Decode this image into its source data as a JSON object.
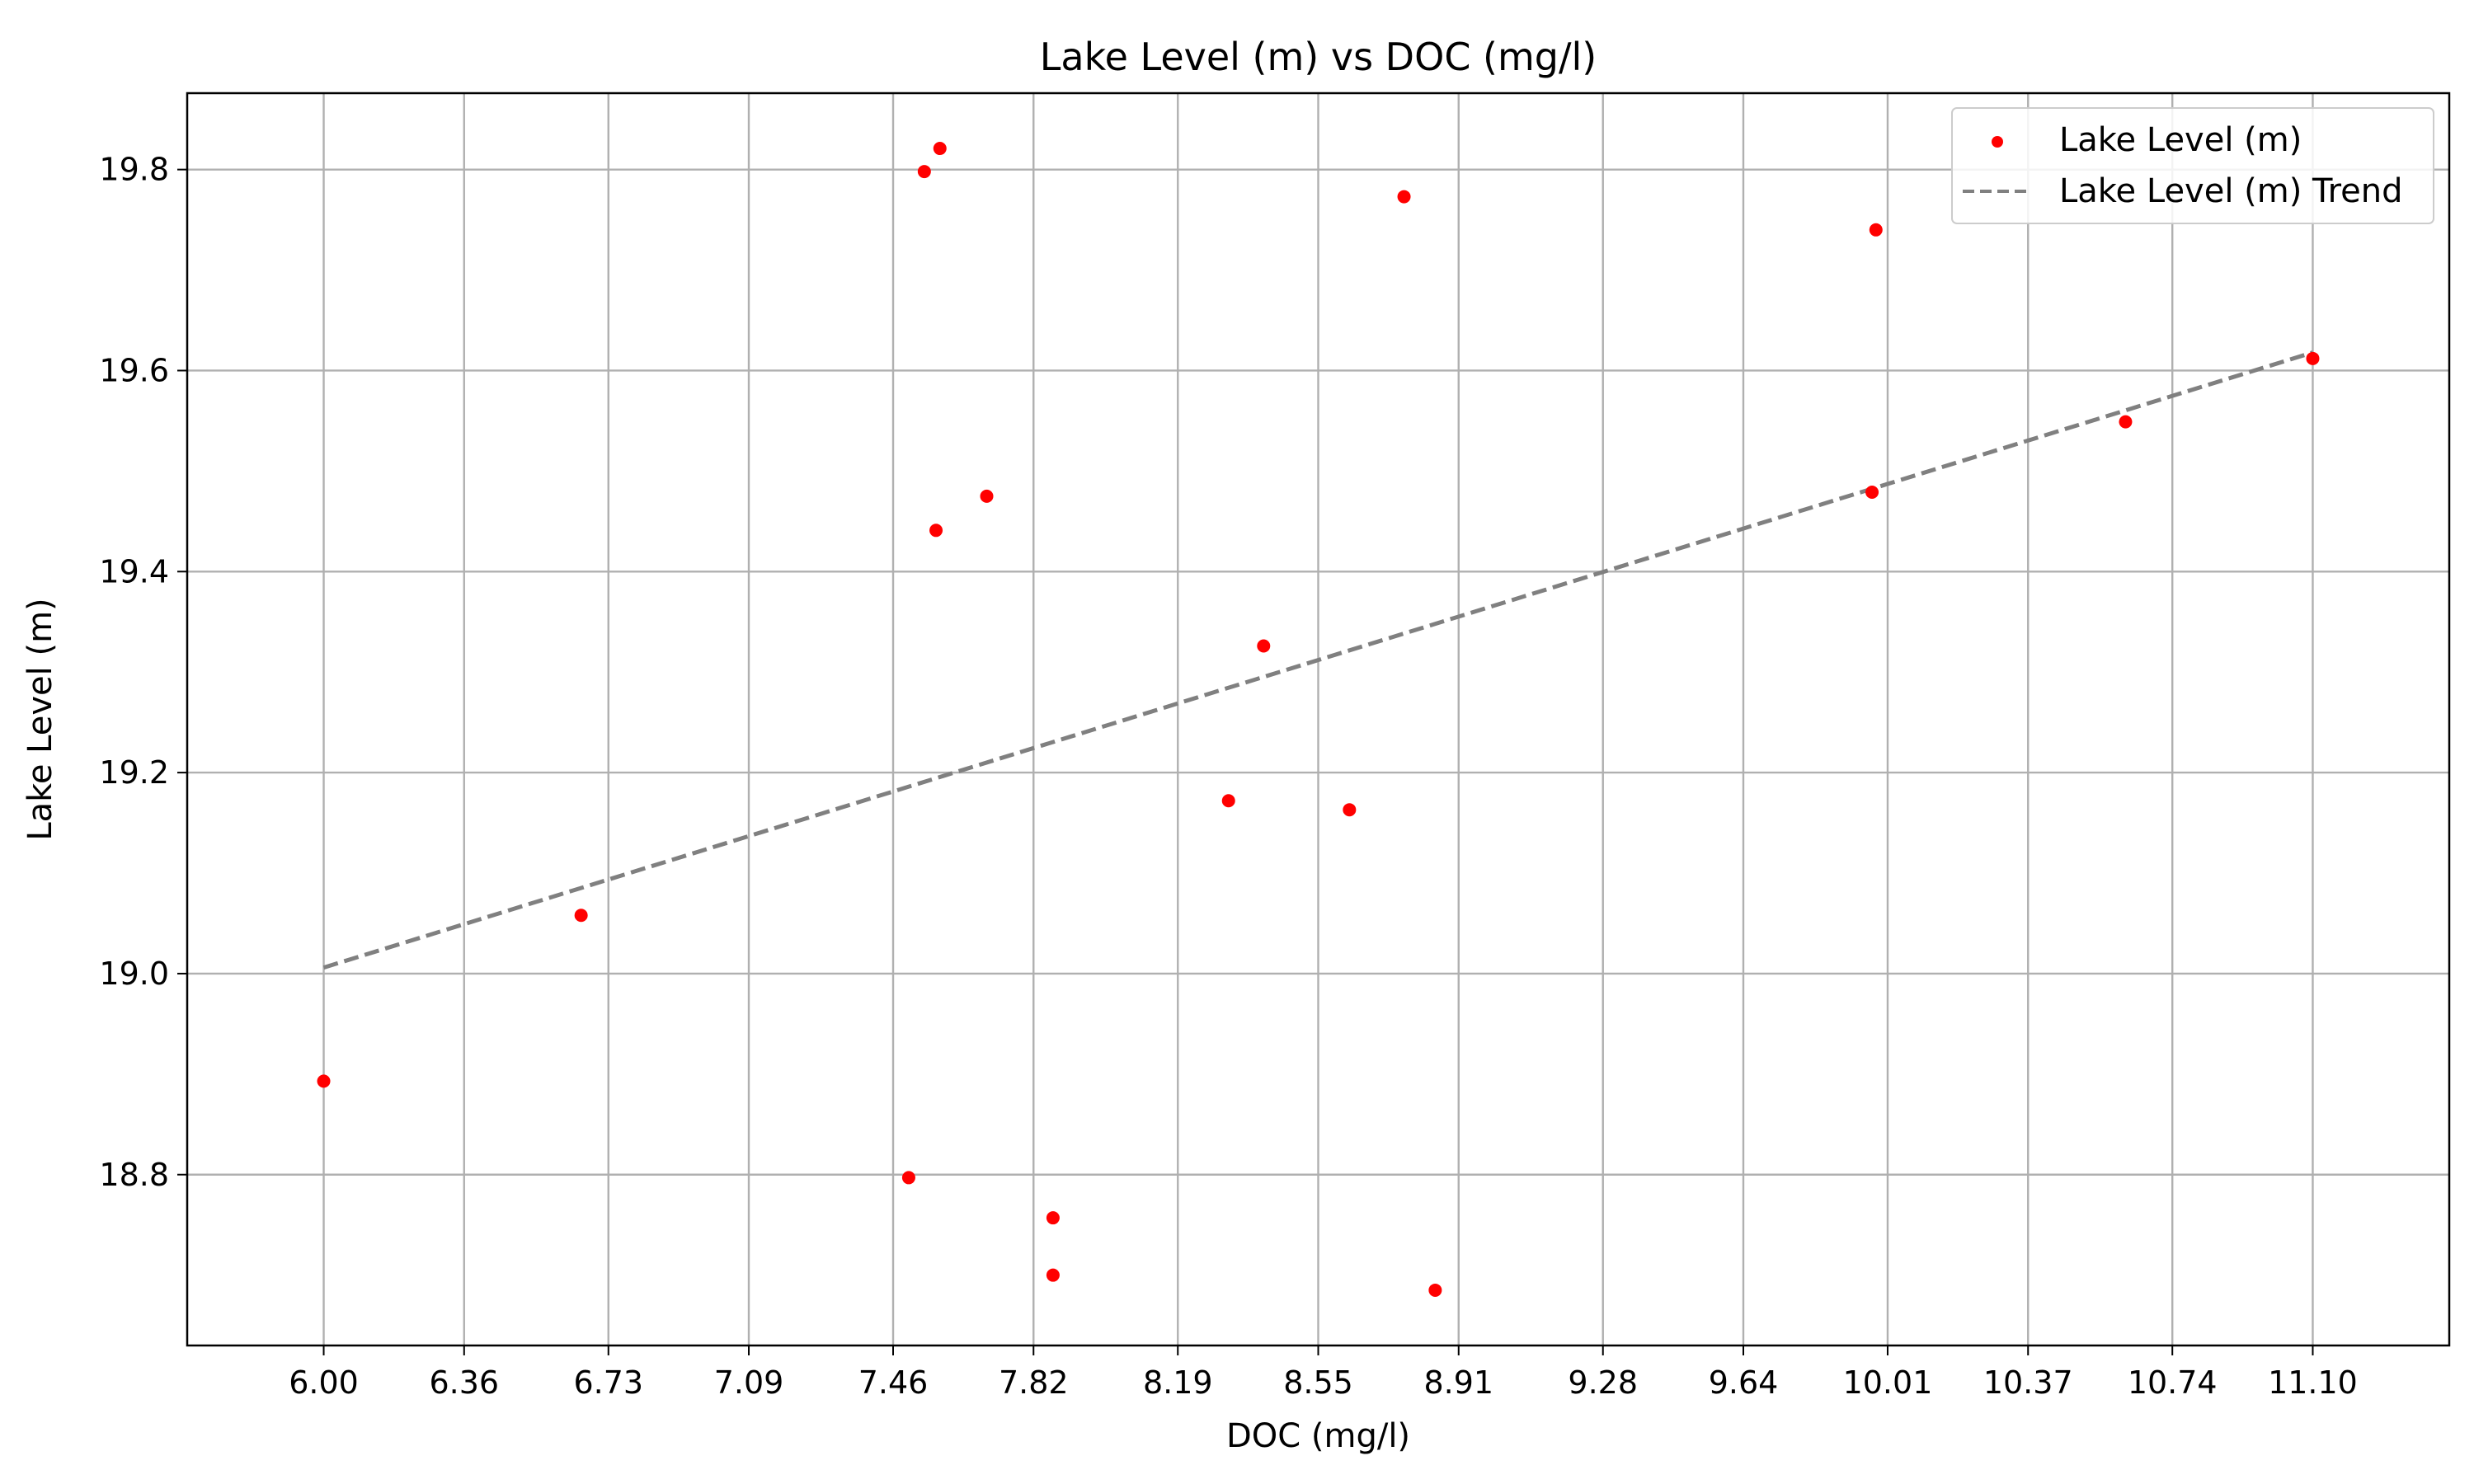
{
  "chart_data": {
    "type": "scatter",
    "title": "Lake Level (m) vs DOC (mg/l)",
    "xlabel": "DOC (mg/l)",
    "ylabel": "Lake Level (m)",
    "xlim": [
      5.65,
      11.45
    ],
    "ylim": [
      18.63,
      19.876
    ],
    "x_ticks": [
      6.0,
      6.36,
      6.73,
      7.09,
      7.46,
      7.82,
      8.19,
      8.55,
      8.91,
      9.28,
      9.64,
      10.01,
      10.37,
      10.74,
      11.1
    ],
    "x_tick_labels": [
      "6.00",
      "6.36",
      "6.73",
      "7.09",
      "7.46",
      "7.82",
      "8.19",
      "8.55",
      "8.91",
      "9.28",
      "9.64",
      "10.01",
      "10.37",
      "10.74",
      "11.10"
    ],
    "y_ticks": [
      18.8,
      19.0,
      19.2,
      19.4,
      19.6,
      19.8
    ],
    "y_tick_labels": [
      "18.8",
      "19.0",
      "19.2",
      "19.4",
      "19.6",
      "19.8"
    ],
    "grid": true,
    "legend_position": "top-right",
    "series": [
      {
        "name": "Lake Level (m)",
        "type": "scatter",
        "color": "#ff0000",
        "points": [
          {
            "x": 6.0,
            "y": 18.893
          },
          {
            "x": 6.66,
            "y": 19.058
          },
          {
            "x": 7.5,
            "y": 18.797
          },
          {
            "x": 7.54,
            "y": 19.798
          },
          {
            "x": 7.57,
            "y": 19.441
          },
          {
            "x": 7.58,
            "y": 19.821
          },
          {
            "x": 7.7,
            "y": 19.475
          },
          {
            "x": 7.87,
            "y": 18.757
          },
          {
            "x": 7.87,
            "y": 18.7
          },
          {
            "x": 8.32,
            "y": 19.172
          },
          {
            "x": 8.41,
            "y": 19.326
          },
          {
            "x": 8.63,
            "y": 19.163
          },
          {
            "x": 8.77,
            "y": 19.773
          },
          {
            "x": 8.85,
            "y": 18.685
          },
          {
            "x": 9.97,
            "y": 19.479
          },
          {
            "x": 9.98,
            "y": 19.74
          },
          {
            "x": 10.62,
            "y": 19.549
          },
          {
            "x": 11.1,
            "y": 19.612
          }
        ]
      },
      {
        "name": "Lake Level (m) Trend",
        "type": "line",
        "style": "dashed",
        "color": "#808080",
        "points": [
          {
            "x": 6.0,
            "y": 19.006
          },
          {
            "x": 11.1,
            "y": 19.618
          }
        ]
      }
    ]
  }
}
